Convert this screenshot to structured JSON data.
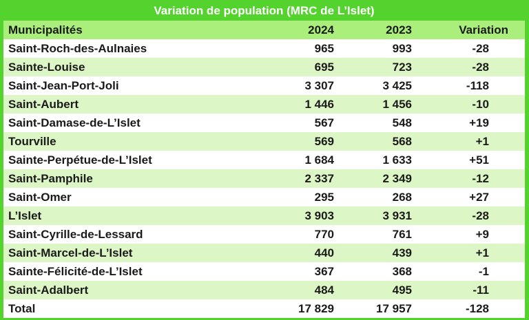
{
  "title": "Variation de population (MRC de L’Islet)",
  "colors": {
    "accent_green": "#54d32e",
    "header_row_green": "#aaee7c",
    "alt_row_green": "#ddf6c6",
    "title_text": "#ffffff",
    "body_text": "#1a1a1a"
  },
  "chart_data": {
    "type": "table",
    "title": "Variation de population (MRC de L’Islet)",
    "columns": [
      "Municipalités",
      "2024",
      "2023",
      "Variation"
    ],
    "rows": [
      [
        "Saint-Roch-des-Aulnaies",
        "965",
        "993",
        "-28"
      ],
      [
        "Sainte-Louise",
        "695",
        "723",
        "-28"
      ],
      [
        "Saint-Jean-Port-Joli",
        "3 307",
        "3 425",
        "-118"
      ],
      [
        "Saint-Aubert",
        "1 446",
        "1 456",
        "-10"
      ],
      [
        "Saint-Damase-de-L’Islet",
        "567",
        "548",
        "+19"
      ],
      [
        "Tourville",
        "569",
        "568",
        "+1"
      ],
      [
        "Sainte-Perpétue-de-L’Islet",
        "1 684",
        "1 633",
        "+51"
      ],
      [
        "Saint-Pamphile",
        "2 337",
        "2 349",
        "-12"
      ],
      [
        "Saint-Omer",
        "295",
        "268",
        "+27"
      ],
      [
        "L’Islet",
        "3 903",
        "3 931",
        "-28"
      ],
      [
        "Saint-Cyrille-de-Lessard",
        "770",
        "761",
        "+9"
      ],
      [
        "Saint-Marcel-de-L’Islet",
        "440",
        "439",
        "+1"
      ],
      [
        "Sainte-Félicité-de-L’Islet",
        "367",
        "368",
        "-1"
      ],
      [
        "Saint-Adalbert",
        "484",
        "495",
        "-11"
      ],
      [
        "Total",
        "17 829",
        "17 957",
        "-128"
      ]
    ],
    "layout": {
      "numeric_columns_alignment": "right",
      "alternating_row_colors": true,
      "total_row_last": true
    }
  }
}
